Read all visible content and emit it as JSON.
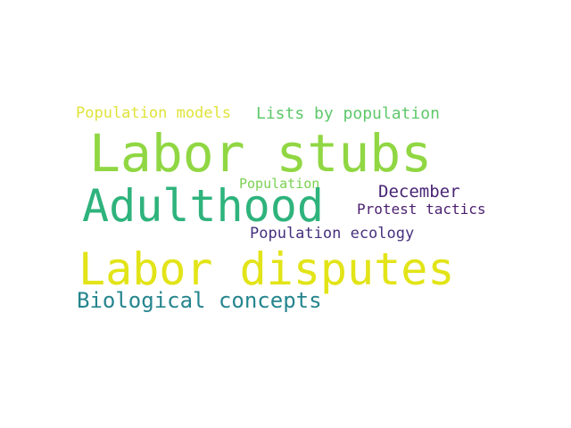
{
  "words": [
    {
      "text": "Population models",
      "color": "#e0e33a"
    },
    {
      "text": "Lists by population",
      "color": "#5ec86a"
    },
    {
      "text": "Labor stubs",
      "color": "#90d743"
    },
    {
      "text": "Population",
      "color": "#7ad151"
    },
    {
      "text": "December",
      "color": "#482475"
    },
    {
      "text": "Adulthood",
      "color": "#2eb37c"
    },
    {
      "text": "Protest tactics",
      "color": "#4b1f6f"
    },
    {
      "text": "Population ecology",
      "color": "#46307e"
    },
    {
      "text": "Labor disputes",
      "color": "#e2e418"
    },
    {
      "text": "Biological concepts",
      "color": "#25858e"
    }
  ]
}
